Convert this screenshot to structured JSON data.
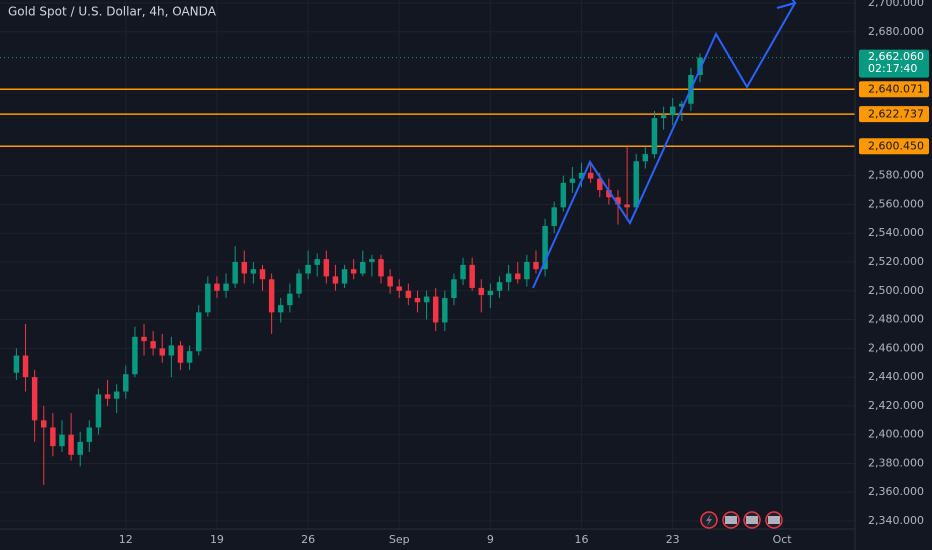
{
  "chart_data": {
    "type": "candlestick",
    "title": "Gold Spot / U.S. Dollar, 4h, OANDA",
    "up_color": "#089981",
    "down_color": "#f23645",
    "grid": true,
    "xlim": [
      -1.8,
      92
    ],
    "ylim": [
      2340,
      2700
    ],
    "xticks": [
      {
        "value": 12,
        "label": "12"
      },
      {
        "value": 22,
        "label": "19"
      },
      {
        "value": 32,
        "label": "26"
      },
      {
        "value": 42,
        "label": "Sep"
      },
      {
        "value": 52,
        "label": "9"
      },
      {
        "value": 62,
        "label": "16"
      },
      {
        "value": 72,
        "label": "23"
      },
      {
        "value": 84,
        "label": "Oct"
      }
    ],
    "yticks": [
      {
        "value": 2340,
        "label": "2,340.000"
      },
      {
        "value": 2360,
        "label": "2,360.000"
      },
      {
        "value": 2380,
        "label": "2,380.000"
      },
      {
        "value": 2400,
        "label": "2,400.000"
      },
      {
        "value": 2420,
        "label": "2,420.000"
      },
      {
        "value": 2440,
        "label": "2,440.000"
      },
      {
        "value": 2460,
        "label": "2,460.000"
      },
      {
        "value": 2480,
        "label": "2,480.000"
      },
      {
        "value": 2500,
        "label": "2,500.000"
      },
      {
        "value": 2520,
        "label": "2,520.000"
      },
      {
        "value": 2540,
        "label": "2,540.000"
      },
      {
        "value": 2560,
        "label": "2,560.000"
      },
      {
        "value": 2580,
        "label": "2,580.000"
      },
      {
        "value": 2680,
        "label": "2,680.000"
      },
      {
        "value": 2700,
        "label": "2,700.000"
      }
    ],
    "levels": [
      {
        "value": 2640.071,
        "label": "2,640.071"
      },
      {
        "value": 2622.737,
        "label": "2,622.737"
      },
      {
        "value": 2600.45,
        "label": "2,600.450"
      }
    ],
    "level_color": "#ff9800",
    "last_price": {
      "value": 2662.06,
      "label": "2,662.060",
      "countdown": "02:17:40"
    },
    "candles": [
      [
        2443,
        2460,
        2438,
        2455
      ],
      [
        2455,
        2477,
        2430,
        2440
      ],
      [
        2440,
        2445,
        2395,
        2410
      ],
      [
        2410,
        2420,
        2365,
        2405
      ],
      [
        2405,
        2415,
        2385,
        2392
      ],
      [
        2392,
        2410,
        2388,
        2400
      ],
      [
        2400,
        2415,
        2382,
        2386
      ],
      [
        2386,
        2402,
        2378,
        2395
      ],
      [
        2395,
        2410,
        2388,
        2405
      ],
      [
        2405,
        2432,
        2400,
        2428
      ],
      [
        2428,
        2438,
        2420,
        2425
      ],
      [
        2425,
        2435,
        2415,
        2430
      ],
      [
        2430,
        2448,
        2425,
        2442
      ],
      [
        2442,
        2475,
        2440,
        2468
      ],
      [
        2468,
        2477,
        2455,
        2465
      ],
      [
        2465,
        2472,
        2455,
        2460
      ],
      [
        2460,
        2470,
        2450,
        2455
      ],
      [
        2455,
        2468,
        2440,
        2462
      ],
      [
        2462,
        2465,
        2445,
        2450
      ],
      [
        2450,
        2462,
        2445,
        2458
      ],
      [
        2458,
        2490,
        2455,
        2485
      ],
      [
        2485,
        2510,
        2482,
        2505
      ],
      [
        2505,
        2510,
        2495,
        2500
      ],
      [
        2500,
        2512,
        2495,
        2505
      ],
      [
        2505,
        2531,
        2502,
        2520
      ],
      [
        2520,
        2528,
        2505,
        2512
      ],
      [
        2512,
        2520,
        2505,
        2515
      ],
      [
        2515,
        2518,
        2500,
        2508
      ],
      [
        2508,
        2512,
        2470,
        2485
      ],
      [
        2485,
        2495,
        2478,
        2490
      ],
      [
        2490,
        2505,
        2485,
        2498
      ],
      [
        2498,
        2515,
        2495,
        2512
      ],
      [
        2512,
        2528,
        2508,
        2518
      ],
      [
        2518,
        2526,
        2510,
        2522
      ],
      [
        2522,
        2528,
        2505,
        2510
      ],
      [
        2510,
        2518,
        2500,
        2505
      ],
      [
        2505,
        2518,
        2502,
        2515
      ],
      [
        2515,
        2522,
        2508,
        2512
      ],
      [
        2512,
        2528,
        2510,
        2520
      ],
      [
        2520,
        2525,
        2510,
        2522
      ],
      [
        2522,
        2525,
        2505,
        2510
      ],
      [
        2510,
        2515,
        2498,
        2503
      ],
      [
        2503,
        2508,
        2495,
        2500
      ],
      [
        2500,
        2505,
        2490,
        2495
      ],
      [
        2495,
        2500,
        2485,
        2492
      ],
      [
        2492,
        2500,
        2480,
        2496
      ],
      [
        2496,
        2502,
        2472,
        2478
      ],
      [
        2478,
        2500,
        2472,
        2495
      ],
      [
        2495,
        2512,
        2490,
        2508
      ],
      [
        2508,
        2523,
        2504,
        2518
      ],
      [
        2518,
        2523,
        2500,
        2502
      ],
      [
        2502,
        2508,
        2485,
        2497
      ],
      [
        2497,
        2505,
        2488,
        2500
      ],
      [
        2500,
        2510,
        2495,
        2506
      ],
      [
        2506,
        2518,
        2500,
        2512
      ],
      [
        2512,
        2520,
        2505,
        2508
      ],
      [
        2508,
        2525,
        2503,
        2520
      ],
      [
        2520,
        2528,
        2512,
        2515
      ],
      [
        2515,
        2550,
        2510,
        2545
      ],
      [
        2545,
        2562,
        2540,
        2558
      ],
      [
        2558,
        2580,
        2555,
        2575
      ],
      [
        2575,
        2586,
        2568,
        2578
      ],
      [
        2578,
        2589,
        2572,
        2582
      ],
      [
        2582,
        2588,
        2575,
        2578
      ],
      [
        2578,
        2582,
        2565,
        2570
      ],
      [
        2570,
        2578,
        2560,
        2565
      ],
      [
        2565,
        2570,
        2546,
        2560
      ],
      [
        2560,
        2600,
        2550,
        2558
      ],
      [
        2558,
        2595,
        2555,
        2590
      ],
      [
        2590,
        2600,
        2585,
        2595
      ],
      [
        2595,
        2625,
        2592,
        2620
      ],
      [
        2620,
        2628,
        2612,
        2622
      ],
      [
        2622,
        2634,
        2615,
        2628
      ],
      [
        2628,
        2632,
        2618,
        2630
      ],
      [
        2630,
        2655,
        2625,
        2650
      ],
      [
        2650,
        2665,
        2645,
        2662.06
      ]
    ]
  }
}
